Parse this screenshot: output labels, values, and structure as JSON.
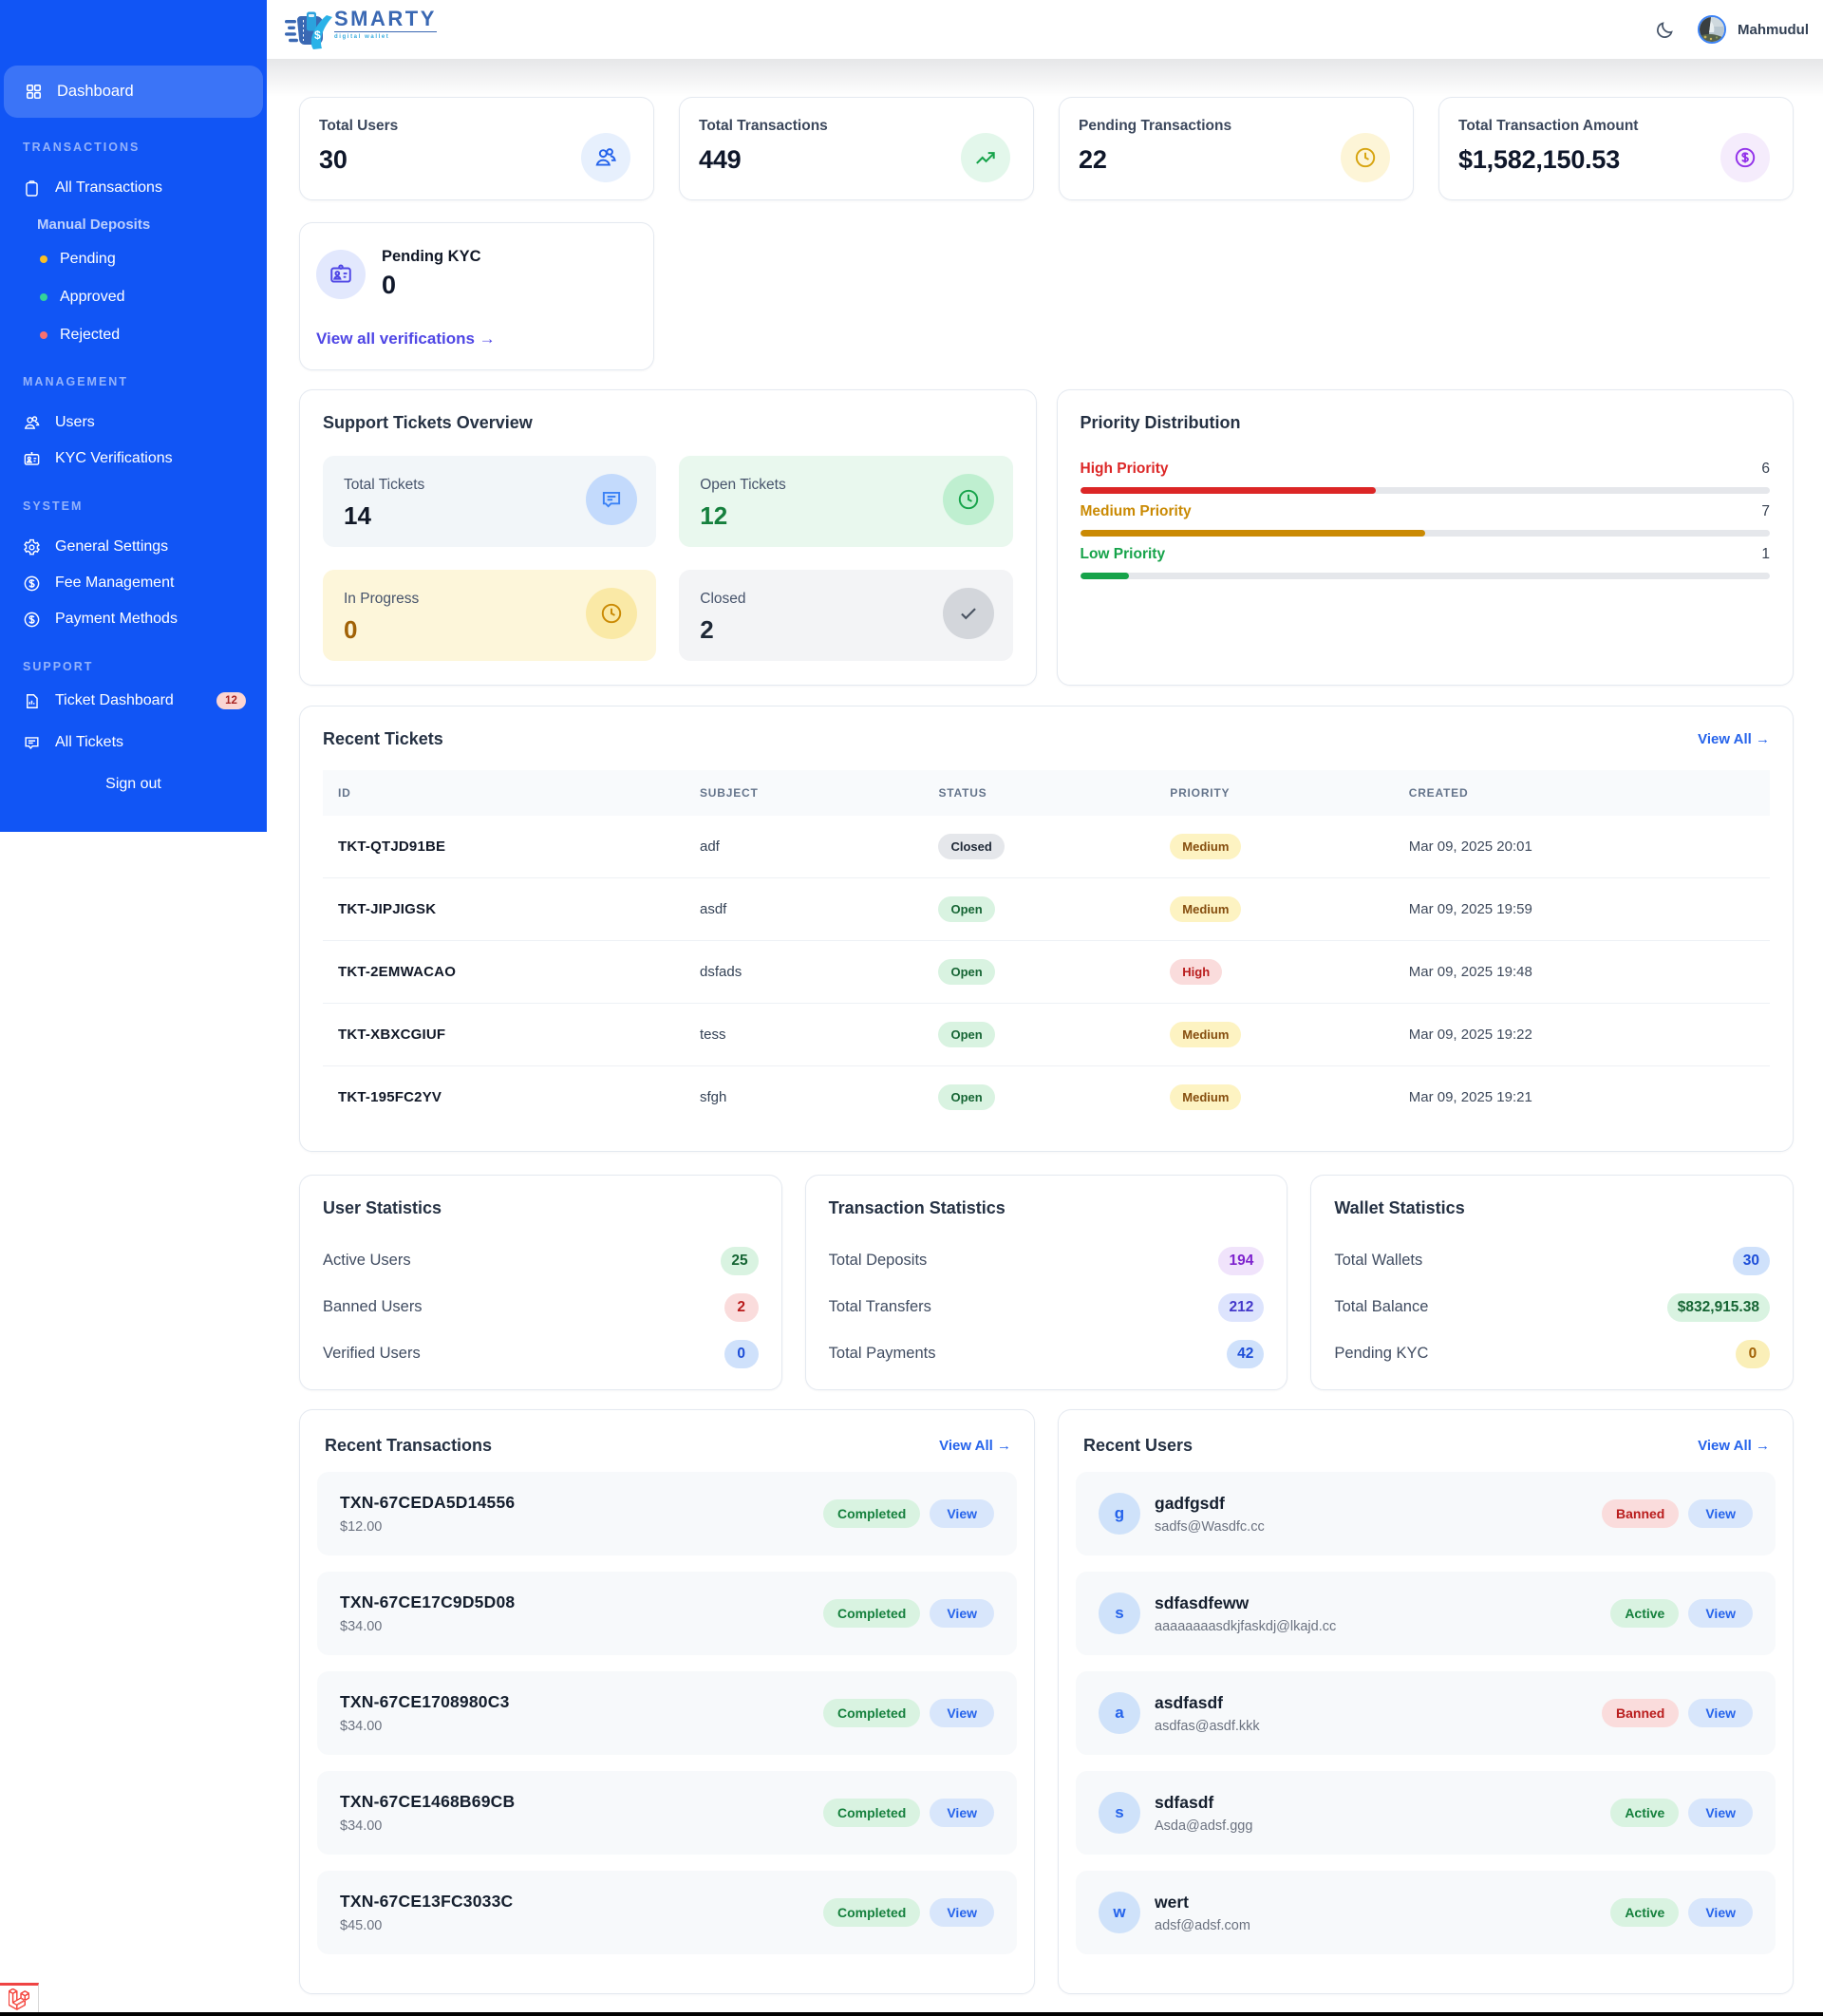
{
  "brand": {
    "name": "SMARTY",
    "tagline": "digital wallet"
  },
  "topbar": {
    "user_name": "Mahmudul"
  },
  "sidebar": {
    "dashboard_label": "Dashboard",
    "signout_label": "Sign out",
    "section_transactions": "TRANSACTIONS",
    "section_management": "MANAGEMENT",
    "section_system": "SYSTEM",
    "section_support": "SUPPORT",
    "items": {
      "all_transactions": "All Transactions",
      "manual_deposits": "Manual Deposits",
      "pending": "Pending",
      "approved": "Approved",
      "rejected": "Rejected",
      "users": "Users",
      "kyc_verifications": "KYC Verifications",
      "general_settings": "General Settings",
      "fee_management": "Fee Management",
      "payment_methods": "Payment Methods",
      "ticket_dashboard": "Ticket Dashboard",
      "ticket_badge": "12",
      "all_tickets": "All Tickets"
    },
    "dot_colors": {
      "pending": "#fbbf24",
      "approved": "#34d399",
      "rejected": "#f87171"
    }
  },
  "stats_cards": [
    {
      "label": "Total Users",
      "value": "30",
      "icon": "users-icon"
    },
    {
      "label": "Total Transactions",
      "value": "449",
      "icon": "trending-up-icon"
    },
    {
      "label": "Pending Transactions",
      "value": "22",
      "icon": "clock-icon"
    },
    {
      "label": "Total Transaction Amount",
      "value": "$1,582,150.53",
      "icon": "dollar-icon"
    }
  ],
  "kyc_card": {
    "label": "Pending KYC",
    "value": "0",
    "link": "View all verifications →"
  },
  "support_overview": {
    "title": "Support Tickets Overview",
    "tiles": [
      {
        "label": "Total Tickets",
        "value": "14"
      },
      {
        "label": "Open Tickets",
        "value": "12"
      },
      {
        "label": "In Progress",
        "value": "0"
      },
      {
        "label": "Closed",
        "value": "2"
      }
    ]
  },
  "priority": {
    "title": "Priority Distribution",
    "rows": [
      {
        "label": "High Priority",
        "value": "6",
        "percent": "42.9%"
      },
      {
        "label": "Medium Priority",
        "value": "7",
        "percent": "50%"
      },
      {
        "label": "Low Priority",
        "value": "1",
        "percent": "7.1%"
      }
    ]
  },
  "chart_data": {
    "type": "bar",
    "title": "Priority Distribution",
    "categories": [
      "High Priority",
      "Medium Priority",
      "Low Priority"
    ],
    "values": [
      6,
      7,
      1
    ],
    "colors": [
      "#dc2626",
      "#ca8a04",
      "#16a34a"
    ],
    "xlim": [
      0,
      14
    ]
  },
  "tickets": {
    "title": "Recent Tickets",
    "view_all": "View All →",
    "headers": [
      "ID",
      "SUBJECT",
      "STATUS",
      "PRIORITY",
      "CREATED"
    ],
    "rows": [
      {
        "id": "TKT-QTJD91BE",
        "subject": "adf",
        "status": "Closed",
        "status_type": "closed",
        "priority": "Medium",
        "priority_type": "medium",
        "created": "Mar 09, 2025 20:01"
      },
      {
        "id": "TKT-JIPJIGSK",
        "subject": "asdf",
        "status": "Open",
        "status_type": "open",
        "priority": "Medium",
        "priority_type": "medium",
        "created": "Mar 09, 2025 19:59"
      },
      {
        "id": "TKT-2EMWACAO",
        "subject": "dsfads",
        "status": "Open",
        "status_type": "open",
        "priority": "High",
        "priority_type": "high",
        "created": "Mar 09, 2025 19:48"
      },
      {
        "id": "TKT-XBXCGIUF",
        "subject": "tess",
        "status": "Open",
        "status_type": "open",
        "priority": "Medium",
        "priority_type": "medium",
        "created": "Mar 09, 2025 19:22"
      },
      {
        "id": "TKT-195FC2YV",
        "subject": "sfgh",
        "status": "Open",
        "status_type": "open",
        "priority": "Medium",
        "priority_type": "medium",
        "created": "Mar 09, 2025 19:21"
      }
    ]
  },
  "user_stats": {
    "title": "User Statistics",
    "rows": [
      {
        "label": "Active Users",
        "value": "25",
        "type": "green"
      },
      {
        "label": "Banned Users",
        "value": "2",
        "type": "red"
      },
      {
        "label": "Verified Users",
        "value": "0",
        "type": "blue"
      }
    ]
  },
  "transaction_stats": {
    "title": "Transaction Statistics",
    "rows": [
      {
        "label": "Total Deposits",
        "value": "194",
        "type": "purple"
      },
      {
        "label": "Total Transfers",
        "value": "212",
        "type": "indigo"
      },
      {
        "label": "Total Payments",
        "value": "42",
        "type": "blue"
      }
    ]
  },
  "wallet_stats": {
    "title": "Wallet Statistics",
    "rows": [
      {
        "label": "Total Wallets",
        "value": "30",
        "type": "blue"
      },
      {
        "label": "Total Balance",
        "value": "$832,915.38",
        "type": "green"
      },
      {
        "label": "Pending KYC",
        "value": "0",
        "type": "yellow"
      }
    ]
  },
  "transactions": {
    "title": "Recent Transactions",
    "view_all": "View All →",
    "rows": [
      {
        "id": "TXN-67CEDA5D14556",
        "amount": "$12.00",
        "status": "Completed",
        "status_type": "completed",
        "action": "View"
      },
      {
        "id": "TXN-67CE17C9D5D08",
        "amount": "$34.00",
        "status": "Completed",
        "status_type": "completed",
        "action": "View"
      },
      {
        "id": "TXN-67CE1708980C3",
        "amount": "$34.00",
        "status": "Completed",
        "status_type": "completed",
        "action": "View"
      },
      {
        "id": "TXN-67CE1468B69CB",
        "amount": "$34.00",
        "status": "Completed",
        "status_type": "completed",
        "action": "View"
      },
      {
        "id": "TXN-67CE13FC3033C",
        "amount": "$45.00",
        "status": "Completed",
        "status_type": "completed",
        "action": "View"
      }
    ]
  },
  "users": {
    "title": "Recent Users",
    "view_all": "View All →",
    "rows": [
      {
        "initial": "g",
        "name": "gadfgsdf",
        "email": "sadfs@Wasdfc.cc",
        "status": "Banned",
        "status_type": "banned",
        "action": "View"
      },
      {
        "initial": "s",
        "name": "sdfasdfeww",
        "email": "aaaaaaaasdkjfaskdj@lkajd.cc",
        "status": "Active",
        "status_type": "active",
        "action": "View"
      },
      {
        "initial": "a",
        "name": "asdfasdf",
        "email": "asdfas@asdf.kkk",
        "status": "Banned",
        "status_type": "banned",
        "action": "View"
      },
      {
        "initial": "s",
        "name": "sdfasdf",
        "email": "Asda@adsf.ggg",
        "status": "Active",
        "status_type": "active",
        "action": "View"
      },
      {
        "initial": "w",
        "name": "wert",
        "email": "adsf@adsf.com",
        "status": "Active",
        "status_type": "active",
        "action": "View"
      }
    ]
  },
  "colors": {
    "sidebar": "#1b5cf0",
    "sidebar_active": "#3d74f3",
    "link_blue": "#2563eb",
    "link_indigo": "#4f46e5",
    "priority_high": "#dc2626",
    "priority_medium": "#ca8a04",
    "priority_low": "#16a34a",
    "debugbar_red": "#ef4444"
  }
}
